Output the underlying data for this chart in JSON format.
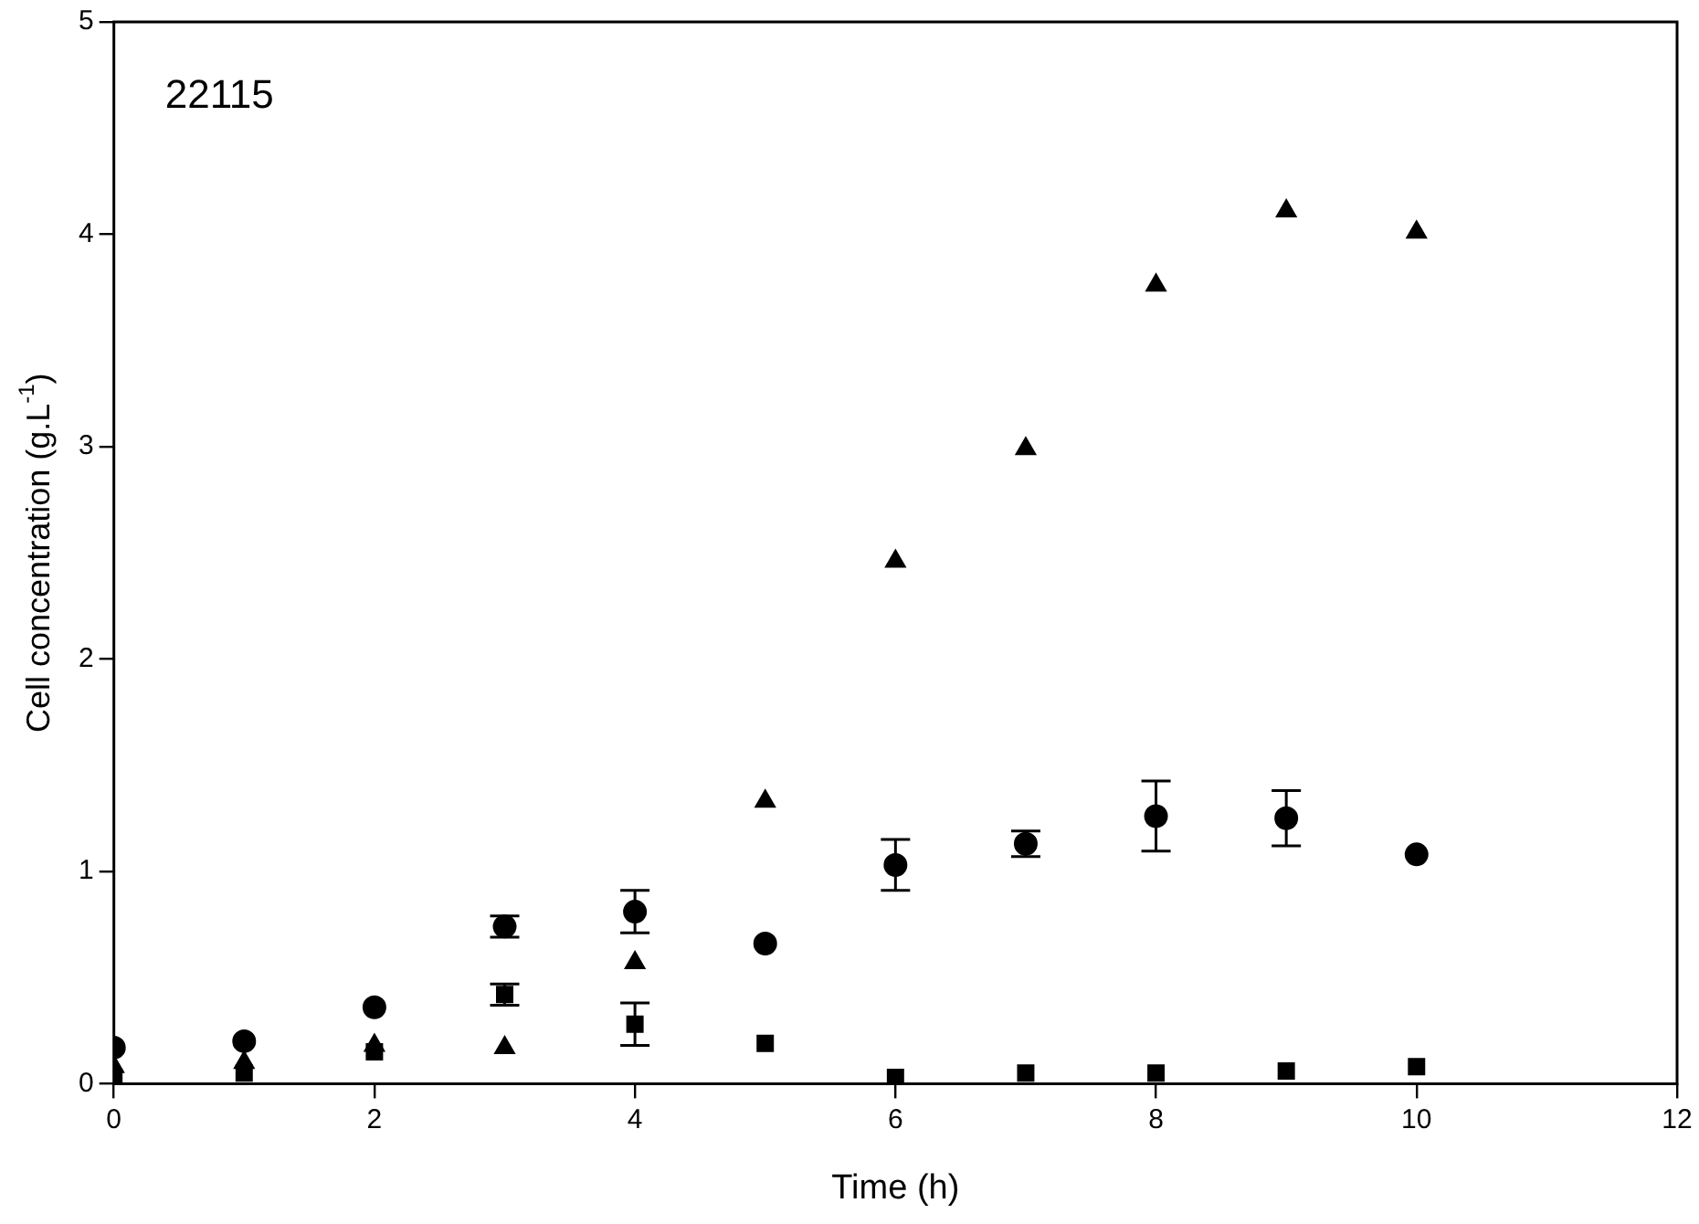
{
  "chart_data": {
    "type": "scatter",
    "xlabel": "Time (h)",
    "ylabel": "Cell concentration (g.L$^{-1}$)",
    "annotations": [
      "22115"
    ],
    "x": [
      0,
      1,
      2,
      3,
      4,
      5,
      6,
      7,
      8,
      9,
      10
    ],
    "xlim": [
      0,
      12
    ],
    "xticks": [
      0,
      2,
      4,
      6,
      8,
      10,
      12
    ],
    "ylim": [
      0,
      5
    ],
    "yticks": [
      0,
      1,
      2,
      3,
      4,
      5
    ],
    "grid": false,
    "legend": false,
    "series": [
      {
        "color": "#000000",
        "marker": "circle",
        "values": [
          0.17,
          0.2,
          0.36,
          0.74,
          0.81,
          0.66,
          1.03,
          1.13,
          1.26,
          1.25,
          1.08
        ],
        "errors": [
          null,
          null,
          null,
          0.05,
          0.1,
          null,
          0.12,
          0.06,
          0.165,
          0.13,
          null
        ]
      },
      {
        "color": "#000000",
        "marker": "triangle",
        "values": [
          0.08,
          0.1,
          0.18,
          0.17,
          0.57,
          1.33,
          2.46,
          2.99,
          3.76,
          4.11,
          4.01
        ]
      },
      {
        "color": "#000000",
        "marker": "square",
        "values": [
          0.03,
          0.05,
          0.15,
          0.42,
          0.28,
          0.19,
          0.03,
          0.05,
          0.05,
          0.06,
          0.08
        ],
        "errors": [
          null,
          null,
          null,
          0.05,
          0.1,
          null,
          null,
          null,
          null,
          null,
          null
        ]
      }
    ]
  }
}
